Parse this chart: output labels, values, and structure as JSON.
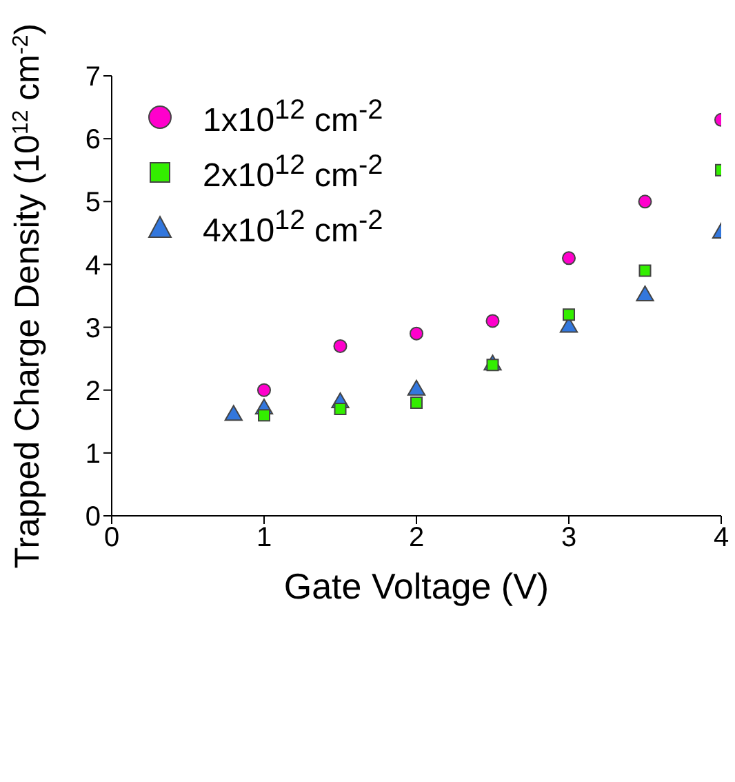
{
  "chart_data": {
    "type": "scatter",
    "xlabel": "Gate Voltage (V)",
    "ylabel": "Trapped Charge Density (10$^{12}$ cm$^{-2}$)",
    "xlim": [
      0,
      4
    ],
    "xticks": [
      0,
      1,
      2,
      3,
      4
    ],
    "ylim": [
      0,
      7
    ],
    "yticks": [
      0,
      1,
      2,
      3,
      4,
      5,
      6,
      7
    ],
    "grid": false,
    "legend": "top left",
    "series": [
      {
        "name": "1x10$^{12}$ cm$^{-2}$",
        "color": "#ff00cc",
        "marker": "circle",
        "x": [
          1,
          1.5,
          2,
          2.5,
          3,
          3.5,
          4
        ],
        "values": [
          2.0,
          2.7,
          2.9,
          3.1,
          4.1,
          5.0,
          6.3
        ]
      },
      {
        "name": "2x10$^{12}$ cm$^{-2}$",
        "color": "#33ee00",
        "marker": "square",
        "x": [
          1,
          1.5,
          2,
          2.5,
          3,
          3.5,
          4
        ],
        "values": [
          1.6,
          1.7,
          1.8,
          2.4,
          3.2,
          3.9,
          5.5
        ]
      },
      {
        "name": "4x10$^{12}$ cm$^{-2}$",
        "color": "#3377dd",
        "marker": "triangle",
        "x": [
          0.8,
          1,
          1.5,
          2,
          2.5,
          3,
          3.5,
          4
        ],
        "values": [
          1.6,
          1.7,
          1.8,
          2.0,
          2.4,
          3.0,
          3.5,
          4.5
        ]
      }
    ]
  }
}
